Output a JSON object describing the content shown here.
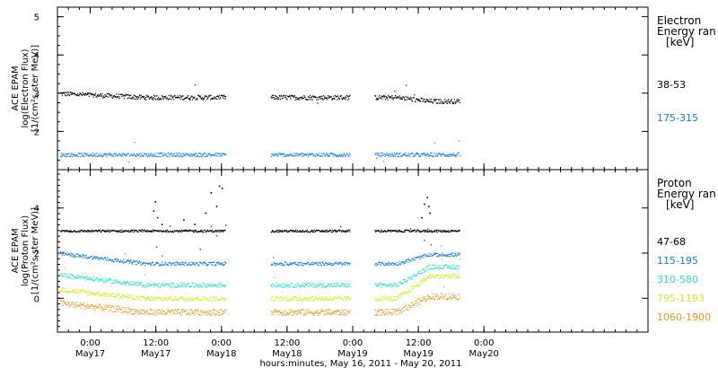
{
  "xaxis": {
    "title": "hours:minutes, May 16, 2011 - May 20, 2011",
    "range_hours": [
      -6,
      102
    ],
    "ticks": [
      {
        "hour": 0,
        "time": "0:00",
        "day": "May17"
      },
      {
        "hour": 12,
        "time": "12:00",
        "day": "May17"
      },
      {
        "hour": 24,
        "time": "0:00",
        "day": "May18"
      },
      {
        "hour": 36,
        "time": "12:00",
        "day": "May18"
      },
      {
        "hour": 48,
        "time": "0:00",
        "day": "May19"
      },
      {
        "hour": 60,
        "time": "12:00",
        "day": "May19"
      },
      {
        "hour": 72,
        "time": "0:00",
        "day": "May20"
      }
    ]
  },
  "chart_data": [
    {
      "type": "scatter",
      "panel": "electron",
      "ylabel_lines": [
        "ACE EPAM",
        "log(Electron Flux)",
        "[1/(cm²s ster MeV)]"
      ],
      "ylim": [
        1.0,
        5.25
      ],
      "yticks": [
        2,
        3,
        4,
        5
      ],
      "legend_title_lines": [
        "Electron",
        "Energy ran",
        "[keV]"
      ],
      "data_segments_hours": [
        [
          -5.5,
          24.8
        ],
        [
          33.0,
          47.5
        ],
        [
          52.0,
          67.5
        ]
      ],
      "series": [
        {
          "name": "38-53",
          "color": "#000000",
          "level": 2.9,
          "noise": 0.06,
          "start": 3.0,
          "trend": -0.1
        },
        {
          "name": "175-315",
          "color": "#1a7fd4",
          "level": 1.4,
          "noise": 0.05,
          "start": 1.4,
          "trend": 0.0
        }
      ]
    },
    {
      "type": "scatter",
      "panel": "proton",
      "ylabel_lines": [
        "ACE EPAM",
        "log(Proton Flux)",
        "[1/(cm²s ster MeV)]"
      ],
      "ylim": [
        -1.5,
        5.7
      ],
      "yticks": [
        0,
        2,
        4
      ],
      "legend_title_lines": [
        "Proton",
        "Energy ran",
        "[keV]"
      ],
      "data_segments_hours": [
        [
          -5.5,
          24.8
        ],
        [
          33.0,
          47.5
        ],
        [
          52.0,
          67.5
        ]
      ],
      "series": [
        {
          "name": "47-68",
          "color": "#000000",
          "level": 3.0,
          "noise": 0.05,
          "start": 3.0,
          "trend": 0.0
        },
        {
          "name": "115-195",
          "color": "#1a7fd4",
          "level": 1.55,
          "noise": 0.08,
          "start": 2.0,
          "trend": 0.4
        },
        {
          "name": "310-580",
          "color": "#33dcd8",
          "level": 0.6,
          "noise": 0.1,
          "start": 1.05,
          "trend": 0.8
        },
        {
          "name": "795-1193",
          "color": "#d6e82a",
          "level": 0.0,
          "noise": 0.1,
          "start": 0.4,
          "trend": 1.0
        },
        {
          "name": "1060-1900",
          "color": "#f0961e",
          "level": -0.6,
          "noise": 0.14,
          "start": -0.2,
          "trend": 0.7
        }
      ]
    }
  ]
}
